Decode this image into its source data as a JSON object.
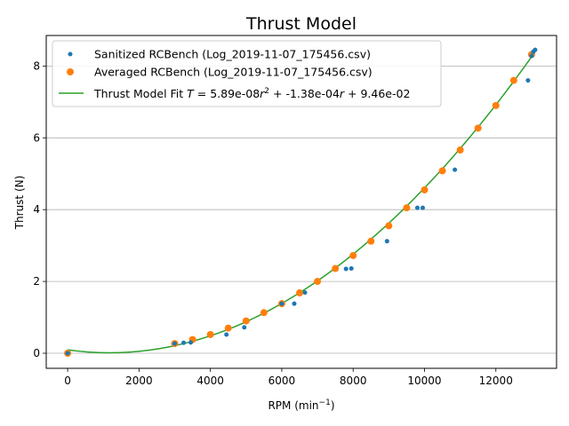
{
  "chart_data": {
    "type": "scatter",
    "title": "Thrust Model",
    "xlabel": "RPM",
    "xlabel_unit_base": "min",
    "xlabel_unit_exp": "−1",
    "ylabel": "Thrust (N)",
    "xlim": [
      -600,
      13700
    ],
    "ylim": [
      -0.42,
      8.85
    ],
    "xticks": [
      0,
      2000,
      4000,
      6000,
      8000,
      10000,
      12000
    ],
    "yticks": [
      0,
      2,
      4,
      6,
      8
    ],
    "grid": "y-major",
    "legend_position": "top-left",
    "colors": {
      "sanitized": "#1f77b4",
      "averaged": "#ff7f0e",
      "fit": "#2ca02c"
    },
    "series": [
      {
        "name": "Sanitized RCBench (Log_2019-11-07_175456.csv)",
        "style": "small-dots",
        "x": [
          0,
          3000,
          3250,
          3450,
          4450,
          4950,
          6000,
          6350,
          6650,
          7800,
          7950,
          8950,
          9800,
          9950,
          10850,
          12900,
          13000,
          13050,
          13100
        ],
        "y": [
          0,
          0.27,
          0.29,
          0.3,
          0.52,
          0.72,
          1.38,
          1.38,
          1.69,
          2.35,
          2.36,
          3.12,
          4.05,
          4.05,
          5.11,
          7.6,
          8.28,
          8.4,
          8.45
        ]
      },
      {
        "name": "Averaged RCBench (Log_2019-11-07_175456.csv)",
        "style": "large-dots",
        "x": [
          0,
          3000,
          3500,
          4000,
          4500,
          5000,
          5500,
          6000,
          6500,
          7000,
          7500,
          8000,
          8500,
          9000,
          9500,
          10000,
          10500,
          11000,
          11500,
          12000,
          12500,
          13000
        ],
        "y": [
          0,
          0.27,
          0.38,
          0.52,
          0.7,
          0.9,
          1.13,
          1.38,
          1.68,
          2.0,
          2.36,
          2.72,
          3.12,
          3.55,
          4.05,
          4.55,
          5.08,
          5.66,
          6.27,
          6.9,
          7.6,
          8.32
        ]
      },
      {
        "name": "Thrust Model Fit",
        "style": "line",
        "legend_prefix": "Thrust Model Fit ",
        "equation_lhs": "T",
        "equation_rhs_a": "5.89e-08",
        "equation_rhs_r": "r",
        "equation_rhs_b": "-1.38e-04",
        "equation_rhs_c": "9.46e-02",
        "coefficients": {
          "a": 5.89e-08,
          "b": -0.000138,
          "c": 0.0946
        },
        "x_range": [
          0,
          13100
        ]
      }
    ]
  }
}
